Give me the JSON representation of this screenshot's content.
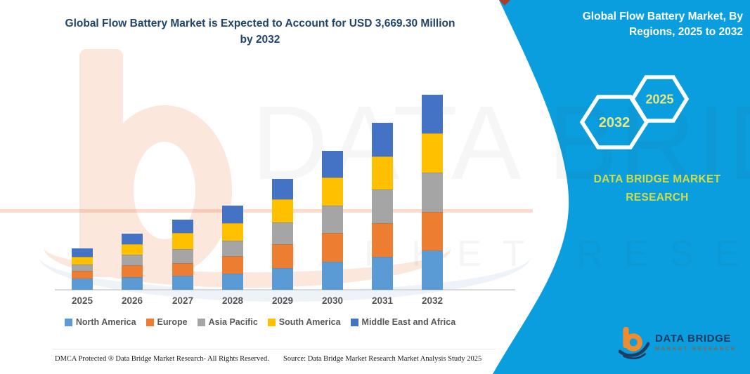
{
  "title": {
    "line1": "Global Flow Battery Market is Expected to Account for USD 3,669.30 Million",
    "line2": "by 2032"
  },
  "side_panel": {
    "title_line1": "Global Flow Battery Market, By",
    "title_line2": "Regions, 2025 to 2032",
    "hexagon_left_label": "2032",
    "hexagon_right_label": "2025",
    "brand_line1": "DATA BRIDGE MARKET",
    "brand_line2": "RESEARCH",
    "accent_color": "#0a9ede",
    "hexagon_text_color": "#eae781",
    "brand_text_color": "#cfdd4d"
  },
  "watermark": {
    "line1": "DATA BRIDGE",
    "line2": "MARKET RESEARCH"
  },
  "logo": {
    "name": "DATA BRIDGE",
    "subtitle": "MARKET RESEARCH"
  },
  "footer": {
    "dmca": "DMCA Protected ® Data Bridge Market Research-  All Rights Reserved.",
    "source": "Source: Data Bridge Market Research  Market Analysis Study 2025"
  },
  "chart_data": {
    "type": "bar",
    "stacked": true,
    "title": "Global Flow Battery Market is Expected to Account for USD 3,669.30 Million by 2032",
    "unit": "USD Million",
    "categories": [
      "2025",
      "2026",
      "2027",
      "2028",
      "2029",
      "2030",
      "2031",
      "2032"
    ],
    "series": [
      {
        "name": "North America",
        "color": "#5B9BD5",
        "values": [
          215,
          238,
          264,
          308,
          409,
          528,
          620,
          739
        ]
      },
      {
        "name": "Europe",
        "color": "#ED7D31",
        "values": [
          136,
          224,
          238,
          330,
          449,
          541,
          634,
          726
        ]
      },
      {
        "name": "Asia Pacific",
        "color": "#A5A5A5",
        "values": [
          128,
          198,
          264,
          286,
          409,
          515,
          634,
          739
        ]
      },
      {
        "name": "South America",
        "color": "#FFC000",
        "values": [
          145,
          198,
          304,
          330,
          436,
          528,
          620,
          739
        ]
      },
      {
        "name": "Middle East and Africa",
        "color": "#4472C4",
        "values": [
          154,
          198,
          251,
          330,
          383,
          502,
          634,
          726.3
        ]
      }
    ],
    "totals": [
      778,
      1056,
      1321,
      1584,
      2086,
      2614,
      3142,
      3669.3
    ],
    "final_value_label": "USD 3,669.30 Million by 2032",
    "legend_position": "bottom",
    "y_axis": {
      "visible": false
    },
    "x_axis": {
      "line_color": "#d9d9d9",
      "label_color": "#555555"
    },
    "grid": false
  }
}
